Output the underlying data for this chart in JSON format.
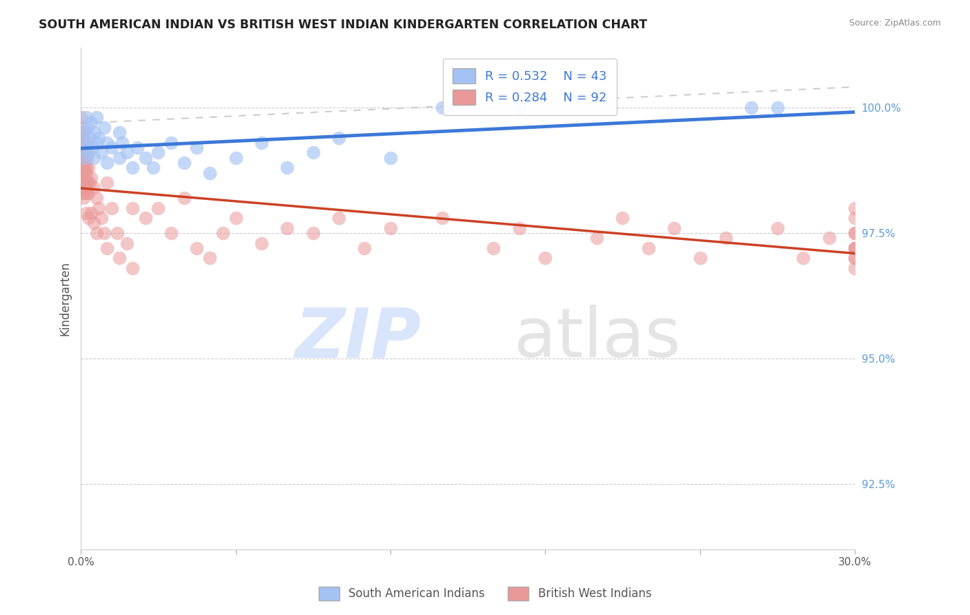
{
  "title": "SOUTH AMERICAN INDIAN VS BRITISH WEST INDIAN KINDERGARTEN CORRELATION CHART",
  "source": "Source: ZipAtlas.com",
  "ylabel": "Kindergarten",
  "yticks": [
    92.5,
    95.0,
    97.5,
    100.0
  ],
  "ytick_labels": [
    "92.5%",
    "95.0%",
    "97.5%",
    "100.0%"
  ],
  "xlim": [
    0.0,
    30.0
  ],
  "ylim": [
    91.2,
    101.2
  ],
  "legend_footer_blue": "South American Indians",
  "legend_footer_pink": "British West Indians",
  "blue_color": "#a4c2f4",
  "pink_color": "#ea9999",
  "blue_line_color": "#3c78d8",
  "pink_line_color": "#cc4125",
  "watermark_zip": "ZIP",
  "watermark_atlas": "atlas",
  "blue_x": [
    0.05,
    0.1,
    0.15,
    0.2,
    0.2,
    0.25,
    0.3,
    0.35,
    0.4,
    0.45,
    0.5,
    0.5,
    0.6,
    0.6,
    0.7,
    0.8,
    0.9,
    1.0,
    1.0,
    1.2,
    1.5,
    1.5,
    1.6,
    1.8,
    2.0,
    2.2,
    2.5,
    2.8,
    3.0,
    3.5,
    4.0,
    4.5,
    5.0,
    6.0,
    7.0,
    8.0,
    9.0,
    10.0,
    12.0,
    14.0,
    17.0,
    26.0,
    27.0
  ],
  "blue_y": [
    99.2,
    99.5,
    99.0,
    99.3,
    99.8,
    99.6,
    99.1,
    99.4,
    99.7,
    99.2,
    99.0,
    99.5,
    99.3,
    99.8,
    99.4,
    99.1,
    99.6,
    99.3,
    98.9,
    99.2,
    99.5,
    99.0,
    99.3,
    99.1,
    98.8,
    99.2,
    99.0,
    98.8,
    99.1,
    99.3,
    98.9,
    99.2,
    98.7,
    99.0,
    99.3,
    98.8,
    99.1,
    99.4,
    99.0,
    100.0,
    100.0,
    100.0,
    100.0
  ],
  "pink_x": [
    0.02,
    0.03,
    0.04,
    0.04,
    0.05,
    0.05,
    0.05,
    0.05,
    0.06,
    0.07,
    0.08,
    0.08,
    0.09,
    0.1,
    0.1,
    0.1,
    0.1,
    0.12,
    0.13,
    0.14,
    0.15,
    0.15,
    0.15,
    0.16,
    0.17,
    0.18,
    0.2,
    0.2,
    0.2,
    0.2,
    0.22,
    0.23,
    0.25,
    0.25,
    0.3,
    0.3,
    0.3,
    0.35,
    0.4,
    0.4,
    0.5,
    0.5,
    0.6,
    0.6,
    0.7,
    0.8,
    0.9,
    1.0,
    1.0,
    1.2,
    1.4,
    1.5,
    1.8,
    2.0,
    2.0,
    2.5,
    3.0,
    3.5,
    4.0,
    4.5,
    5.0,
    5.5,
    6.0,
    7.0,
    8.0,
    9.0,
    10.0,
    11.0,
    12.0,
    14.0,
    16.0,
    17.0,
    18.0,
    20.0,
    21.0,
    22.0,
    23.0,
    24.0,
    25.0,
    27.0,
    28.0,
    29.0,
    30.0,
    30.0,
    30.0,
    30.0,
    30.0,
    30.0,
    30.0,
    30.0,
    30.0,
    30.0
  ],
  "pink_y": [
    99.8,
    99.5,
    99.6,
    99.2,
    99.4,
    99.0,
    98.7,
    98.3,
    99.3,
    99.1,
    98.9,
    98.5,
    99.2,
    99.4,
    99.0,
    98.6,
    98.2,
    99.1,
    98.8,
    98.4,
    99.3,
    98.9,
    98.4,
    99.0,
    98.7,
    98.3,
    99.1,
    98.7,
    98.3,
    97.9,
    98.8,
    98.5,
    99.0,
    98.5,
    98.8,
    98.3,
    97.8,
    98.5,
    98.6,
    97.9,
    98.4,
    97.7,
    98.2,
    97.5,
    98.0,
    97.8,
    97.5,
    98.5,
    97.2,
    98.0,
    97.5,
    97.0,
    97.3,
    98.0,
    96.8,
    97.8,
    98.0,
    97.5,
    98.2,
    97.2,
    97.0,
    97.5,
    97.8,
    97.3,
    97.6,
    97.5,
    97.8,
    97.2,
    97.6,
    97.8,
    97.2,
    97.6,
    97.0,
    97.4,
    97.8,
    97.2,
    97.6,
    97.0,
    97.4,
    97.6,
    97.0,
    97.4,
    98.0,
    97.5,
    97.2,
    97.0,
    96.8,
    97.2,
    97.5,
    97.8,
    97.0,
    97.2
  ]
}
